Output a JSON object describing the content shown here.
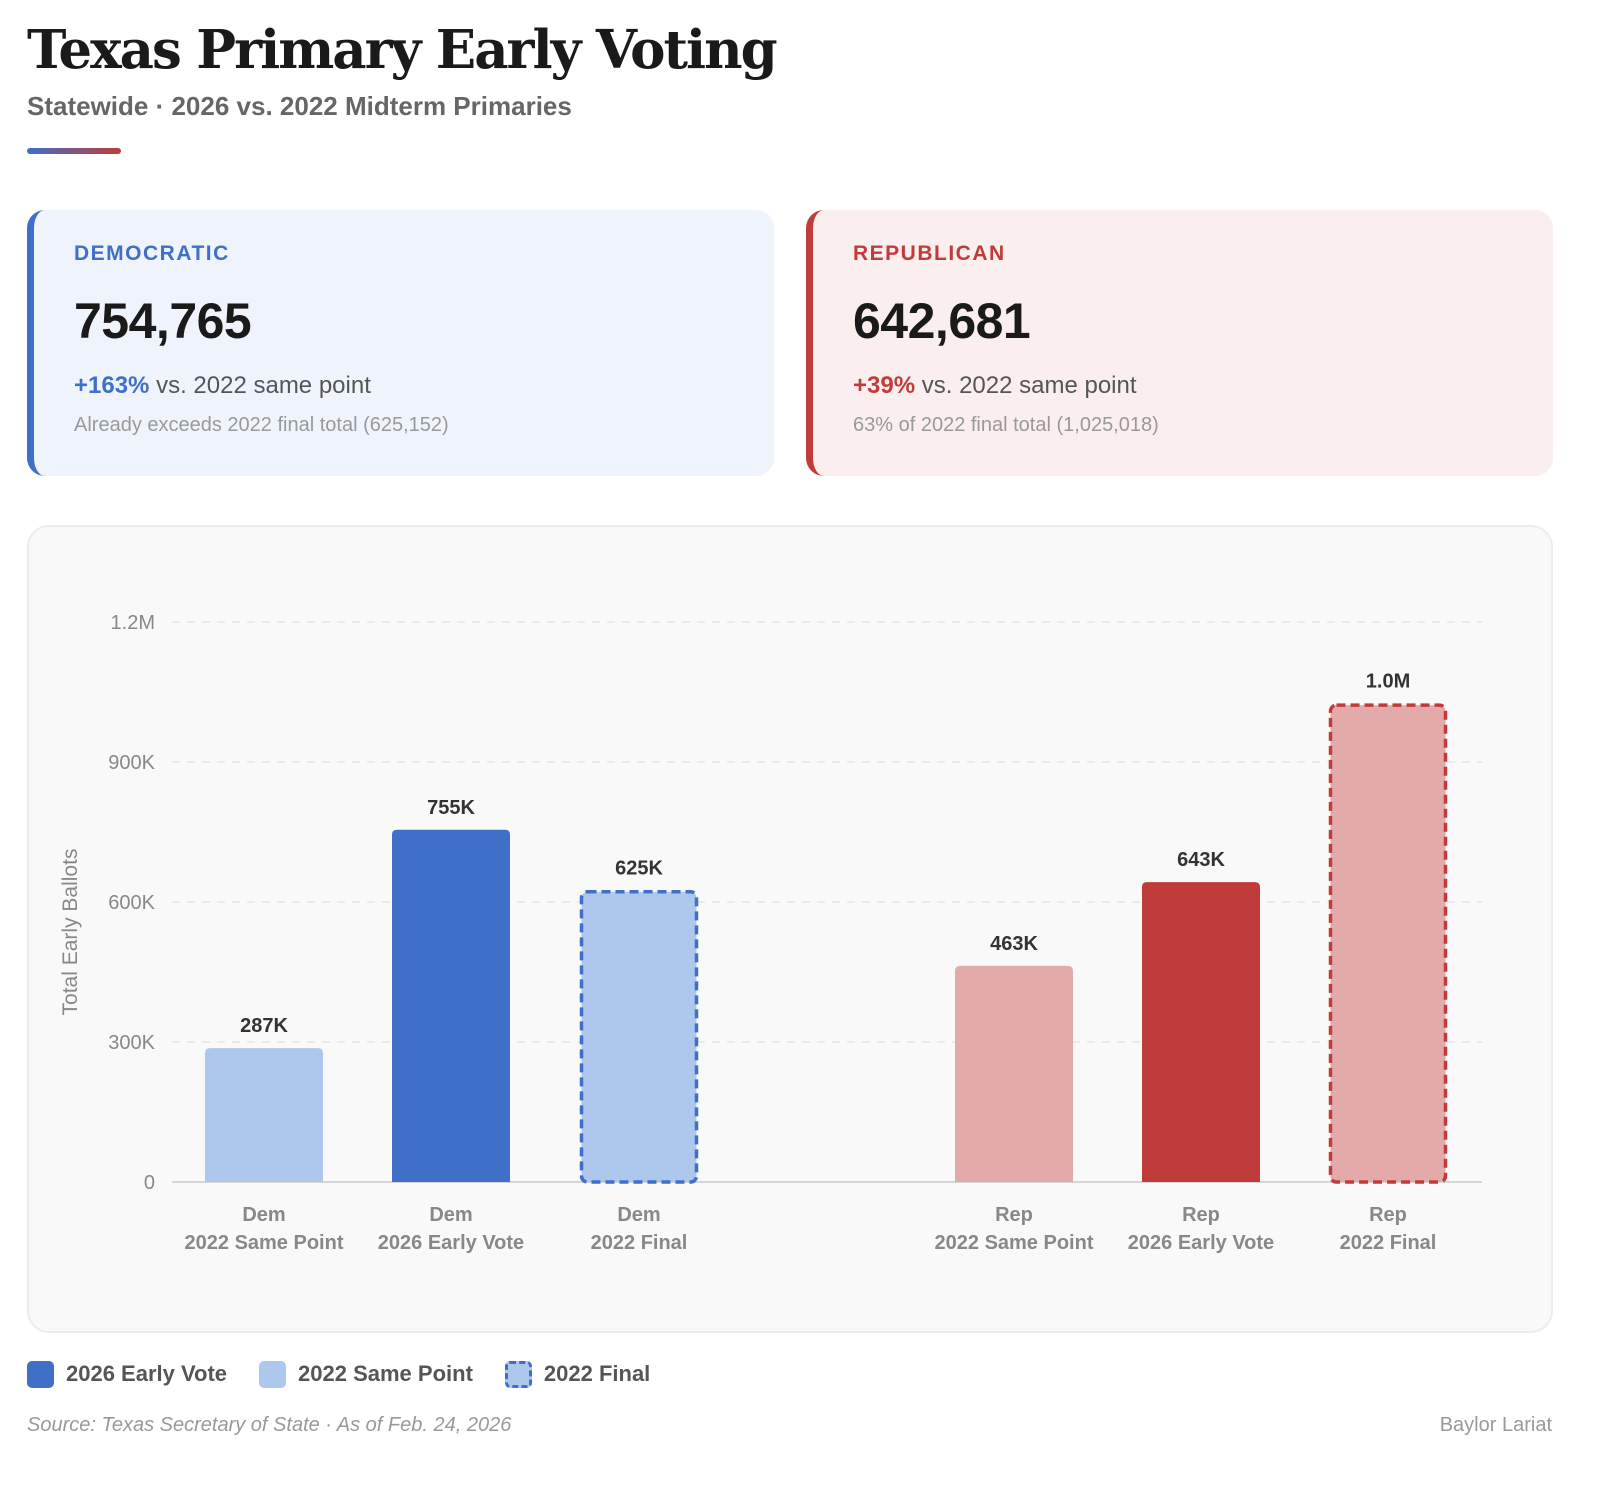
{
  "header": {
    "title": "Texas Primary Early Voting",
    "subtitle": "Statewide · 2026 vs. 2022 Midterm Primaries"
  },
  "colors": {
    "dem_dark": "#3f6fc6",
    "dem_light": "#aec8ed",
    "rep_dark": "#c03c3a",
    "rep_light": "#e4aaaa",
    "dem_card_bg": "#eff4fc",
    "rep_card_bg": "#fbeeee"
  },
  "cards": {
    "dem": {
      "label": "DEMOCRATIC",
      "total": "754,765",
      "pct": "+163%",
      "delta_text": " vs. 2022 same point",
      "note": "Already exceeds 2022 final total (625,152)"
    },
    "rep": {
      "label": "REPUBLICAN",
      "total": "642,681",
      "pct": "+39%",
      "delta_text": " vs. 2022 same point",
      "note": "63% of 2022 final total (1,025,018)"
    }
  },
  "chart_data": {
    "type": "bar",
    "title": "",
    "xlabel": "",
    "ylabel": "Total Early Ballots",
    "ylim": [
      0,
      1200000
    ],
    "yticks": [
      0,
      300000,
      600000,
      900000,
      1200000
    ],
    "ytick_labels": [
      "0",
      "300K",
      "600K",
      "900K",
      "1.2M"
    ],
    "grid": true,
    "legend_position": "bottom-left",
    "bars": [
      {
        "party": "Dem",
        "category": "2022 Same Point",
        "value": 287000,
        "label": "287K",
        "style": "light",
        "dashed": false,
        "group": "dem"
      },
      {
        "party": "Dem",
        "category": "2026 Early Vote",
        "value": 754765,
        "label": "755K",
        "style": "dark",
        "dashed": false,
        "group": "dem"
      },
      {
        "party": "Dem",
        "category": "2022 Final",
        "value": 625152,
        "label": "625K",
        "style": "light",
        "dashed": true,
        "group": "dem"
      },
      {
        "party": "Rep",
        "category": "2022 Same Point",
        "value": 463000,
        "label": "463K",
        "style": "light",
        "dashed": false,
        "group": "rep"
      },
      {
        "party": "Rep",
        "category": "2026 Early Vote",
        "value": 642681,
        "label": "643K",
        "style": "dark",
        "dashed": false,
        "group": "rep"
      },
      {
        "party": "Rep",
        "category": "2022 Final",
        "value": 1025018,
        "label": "1.0M",
        "style": "light",
        "dashed": true,
        "group": "rep"
      }
    ],
    "legend": [
      {
        "label": "2026 Early Vote",
        "swatch": "solid-dark"
      },
      {
        "label": "2022 Same Point",
        "swatch": "solid-light"
      },
      {
        "label": "2022 Final",
        "swatch": "dashed"
      }
    ]
  },
  "footer": {
    "source": "Source: Texas Secretary of State · As of Feb. 24, 2026",
    "credit": "Baylor Lariat"
  }
}
